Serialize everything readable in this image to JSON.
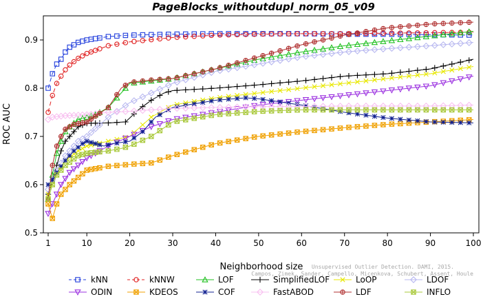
{
  "chart_data": {
    "type": "line",
    "title": "PageBlocks_withoutdupl_norm_05_v09",
    "xlabel": "Neighborhood size",
    "ylabel": "ROC AUC",
    "xlim": [
      1,
      100
    ],
    "ylim": [
      0.5,
      0.95
    ],
    "xticks": [
      1,
      10,
      20,
      30,
      40,
      50,
      60,
      70,
      80,
      90,
      100
    ],
    "yticks": [
      0.5,
      0.6,
      0.7,
      0.8,
      0.9
    ],
    "legend_position": "bottom",
    "credit": [
      "Campos, Zimek, Sander, Campello, Micenkova, Schubert, Assent, Houle",
      "Unsupervised Outlier Detection. DAMI, 2015."
    ],
    "series": [
      {
        "name": "kNN",
        "color": "#1f3cdc",
        "marker": "square",
        "dash": "6,4",
        "points": [
          [
            1,
            0.8
          ],
          [
            2,
            0.83
          ],
          [
            3,
            0.85
          ],
          [
            4,
            0.86
          ],
          [
            5,
            0.875
          ],
          [
            6,
            0.885
          ],
          [
            8,
            0.895
          ],
          [
            10,
            0.9
          ],
          [
            15,
            0.907
          ],
          [
            20,
            0.91
          ],
          [
            30,
            0.912
          ],
          [
            40,
            0.913
          ],
          [
            50,
            0.913
          ],
          [
            60,
            0.913
          ],
          [
            70,
            0.912
          ],
          [
            80,
            0.912
          ],
          [
            90,
            0.911
          ],
          [
            100,
            0.91
          ]
        ]
      },
      {
        "name": "kNNW",
        "color": "#e02020",
        "marker": "circle",
        "dash": "6,4",
        "points": [
          [
            1,
            0.75
          ],
          [
            2,
            0.785
          ],
          [
            3,
            0.81
          ],
          [
            4,
            0.825
          ],
          [
            5,
            0.838
          ],
          [
            6,
            0.848
          ],
          [
            8,
            0.862
          ],
          [
            10,
            0.872
          ],
          [
            15,
            0.888
          ],
          [
            20,
            0.896
          ],
          [
            30,
            0.905
          ],
          [
            40,
            0.91
          ],
          [
            50,
            0.912
          ],
          [
            60,
            0.913
          ],
          [
            70,
            0.913
          ],
          [
            80,
            0.914
          ],
          [
            90,
            0.915
          ],
          [
            100,
            0.916
          ]
        ]
      },
      {
        "name": "LOF",
        "color": "#20c020",
        "marker": "triangle",
        "dash": "",
        "points": [
          [
            1,
            0.57
          ],
          [
            2,
            0.62
          ],
          [
            3,
            0.665
          ],
          [
            4,
            0.69
          ],
          [
            5,
            0.71
          ],
          [
            6,
            0.72
          ],
          [
            8,
            0.735
          ],
          [
            10,
            0.74
          ],
          [
            12,
            0.745
          ],
          [
            15,
            0.76
          ],
          [
            18,
            0.79
          ],
          [
            20,
            0.81
          ],
          [
            25,
            0.815
          ],
          [
            30,
            0.82
          ],
          [
            40,
            0.84
          ],
          [
            50,
            0.86
          ],
          [
            60,
            0.875
          ],
          [
            70,
            0.888
          ],
          [
            80,
            0.898
          ],
          [
            90,
            0.908
          ],
          [
            100,
            0.918
          ]
        ]
      },
      {
        "name": "SimplifiedLOF",
        "color": "#000000",
        "marker": "plus",
        "dash": "",
        "points": [
          [
            1,
            0.58
          ],
          [
            2,
            0.61
          ],
          [
            3,
            0.64
          ],
          [
            4,
            0.67
          ],
          [
            5,
            0.69
          ],
          [
            6,
            0.7
          ],
          [
            8,
            0.72
          ],
          [
            10,
            0.727
          ],
          [
            15,
            0.728
          ],
          [
            19,
            0.73
          ],
          [
            22,
            0.755
          ],
          [
            25,
            0.775
          ],
          [
            28,
            0.79
          ],
          [
            30,
            0.795
          ],
          [
            40,
            0.8
          ],
          [
            50,
            0.807
          ],
          [
            60,
            0.815
          ],
          [
            70,
            0.825
          ],
          [
            80,
            0.83
          ],
          [
            90,
            0.84
          ],
          [
            95,
            0.85
          ],
          [
            100,
            0.86
          ]
        ]
      },
      {
        "name": "LoOP",
        "color": "#e8e800",
        "marker": "cross",
        "dash": "",
        "points": [
          [
            1,
            0.58
          ],
          [
            2,
            0.6
          ],
          [
            3,
            0.62
          ],
          [
            5,
            0.65
          ],
          [
            8,
            0.67
          ],
          [
            10,
            0.68
          ],
          [
            15,
            0.69
          ],
          [
            20,
            0.7
          ],
          [
            25,
            0.74
          ],
          [
            30,
            0.765
          ],
          [
            40,
            0.78
          ],
          [
            50,
            0.79
          ],
          [
            60,
            0.8
          ],
          [
            70,
            0.81
          ],
          [
            80,
            0.82
          ],
          [
            90,
            0.83
          ],
          [
            100,
            0.845
          ]
        ]
      },
      {
        "name": "LDOF",
        "color": "#b8b8f0",
        "marker": "diamond",
        "dash": "",
        "points": [
          [
            1,
            0.59
          ],
          [
            2,
            0.61
          ],
          [
            3,
            0.63
          ],
          [
            5,
            0.66
          ],
          [
            8,
            0.69
          ],
          [
            10,
            0.7
          ],
          [
            15,
            0.74
          ],
          [
            20,
            0.77
          ],
          [
            25,
            0.79
          ],
          [
            30,
            0.81
          ],
          [
            40,
            0.835
          ],
          [
            50,
            0.85
          ],
          [
            60,
            0.865
          ],
          [
            70,
            0.875
          ],
          [
            80,
            0.882
          ],
          [
            90,
            0.888
          ],
          [
            100,
            0.895
          ]
        ]
      },
      {
        "name": "ODIN",
        "color": "#9b30e0",
        "marker": "triangle-down",
        "dash": "",
        "points": [
          [
            1,
            0.54
          ],
          [
            2,
            0.56
          ],
          [
            3,
            0.58
          ],
          [
            4,
            0.6
          ],
          [
            6,
            0.625
          ],
          [
            8,
            0.64
          ],
          [
            10,
            0.655
          ],
          [
            15,
            0.68
          ],
          [
            20,
            0.7
          ],
          [
            25,
            0.72
          ],
          [
            30,
            0.735
          ],
          [
            40,
            0.75
          ],
          [
            50,
            0.765
          ],
          [
            60,
            0.775
          ],
          [
            70,
            0.785
          ],
          [
            80,
            0.795
          ],
          [
            90,
            0.805
          ],
          [
            100,
            0.825
          ]
        ]
      },
      {
        "name": "KDEOS",
        "color": "#f0a000",
        "marker": "square-x",
        "dash": "",
        "points": [
          [
            1,
            0.56
          ],
          [
            2,
            0.53
          ],
          [
            3,
            0.56
          ],
          [
            4,
            0.58
          ],
          [
            6,
            0.6
          ],
          [
            8,
            0.615
          ],
          [
            10,
            0.63
          ],
          [
            15,
            0.638
          ],
          [
            20,
            0.642
          ],
          [
            25,
            0.645
          ],
          [
            30,
            0.66
          ],
          [
            40,
            0.685
          ],
          [
            50,
            0.7
          ],
          [
            60,
            0.71
          ],
          [
            70,
            0.718
          ],
          [
            80,
            0.725
          ],
          [
            90,
            0.73
          ],
          [
            100,
            0.735
          ]
        ]
      },
      {
        "name": "COF",
        "color": "#102090",
        "marker": "star",
        "dash": "",
        "points": [
          [
            1,
            0.6
          ],
          [
            2,
            0.61
          ],
          [
            3,
            0.625
          ],
          [
            5,
            0.65
          ],
          [
            7,
            0.67
          ],
          [
            9,
            0.685
          ],
          [
            10,
            0.69
          ],
          [
            12,
            0.685
          ],
          [
            14,
            0.68
          ],
          [
            16,
            0.685
          ],
          [
            20,
            0.69
          ],
          [
            23,
            0.71
          ],
          [
            26,
            0.74
          ],
          [
            30,
            0.76
          ],
          [
            40,
            0.775
          ],
          [
            47,
            0.78
          ],
          [
            50,
            0.778
          ],
          [
            60,
            0.765
          ],
          [
            70,
            0.75
          ],
          [
            80,
            0.738
          ],
          [
            90,
            0.73
          ],
          [
            100,
            0.728
          ]
        ]
      },
      {
        "name": "FastABOD",
        "color": "#f8c0f0",
        "marker": "diamond",
        "dash": "",
        "points": [
          [
            1,
            0.735
          ],
          [
            2,
            0.74
          ],
          [
            5,
            0.743
          ],
          [
            10,
            0.745
          ],
          [
            15,
            0.75
          ],
          [
            20,
            0.752
          ],
          [
            25,
            0.755
          ],
          [
            30,
            0.758
          ],
          [
            40,
            0.76
          ],
          [
            50,
            0.762
          ],
          [
            60,
            0.762
          ],
          [
            70,
            0.763
          ],
          [
            80,
            0.763
          ],
          [
            90,
            0.763
          ],
          [
            100,
            0.765
          ]
        ]
      },
      {
        "name": "LDF",
        "color": "#b03030",
        "marker": "circle-plus",
        "dash": "",
        "points": [
          [
            1,
            0.57
          ],
          [
            2,
            0.64
          ],
          [
            3,
            0.68
          ],
          [
            4,
            0.7
          ],
          [
            5,
            0.715
          ],
          [
            7,
            0.725
          ],
          [
            10,
            0.73
          ],
          [
            15,
            0.76
          ],
          [
            18,
            0.8
          ],
          [
            20,
            0.812
          ],
          [
            25,
            0.817
          ],
          [
            30,
            0.82
          ],
          [
            40,
            0.84
          ],
          [
            50,
            0.865
          ],
          [
            60,
            0.89
          ],
          [
            70,
            0.91
          ],
          [
            80,
            0.925
          ],
          [
            90,
            0.933
          ],
          [
            100,
            0.937
          ]
        ]
      },
      {
        "name": "INFLO",
        "color": "#a8c838",
        "marker": "square-x",
        "dash": "",
        "points": [
          [
            1,
            0.57
          ],
          [
            2,
            0.6
          ],
          [
            3,
            0.62
          ],
          [
            5,
            0.64
          ],
          [
            8,
            0.66
          ],
          [
            10,
            0.665
          ],
          [
            15,
            0.67
          ],
          [
            18,
            0.675
          ],
          [
            20,
            0.68
          ],
          [
            25,
            0.7
          ],
          [
            30,
            0.73
          ],
          [
            40,
            0.745
          ],
          [
            50,
            0.752
          ],
          [
            60,
            0.755
          ],
          [
            70,
            0.755
          ],
          [
            80,
            0.755
          ],
          [
            90,
            0.755
          ],
          [
            100,
            0.755
          ]
        ]
      }
    ]
  }
}
